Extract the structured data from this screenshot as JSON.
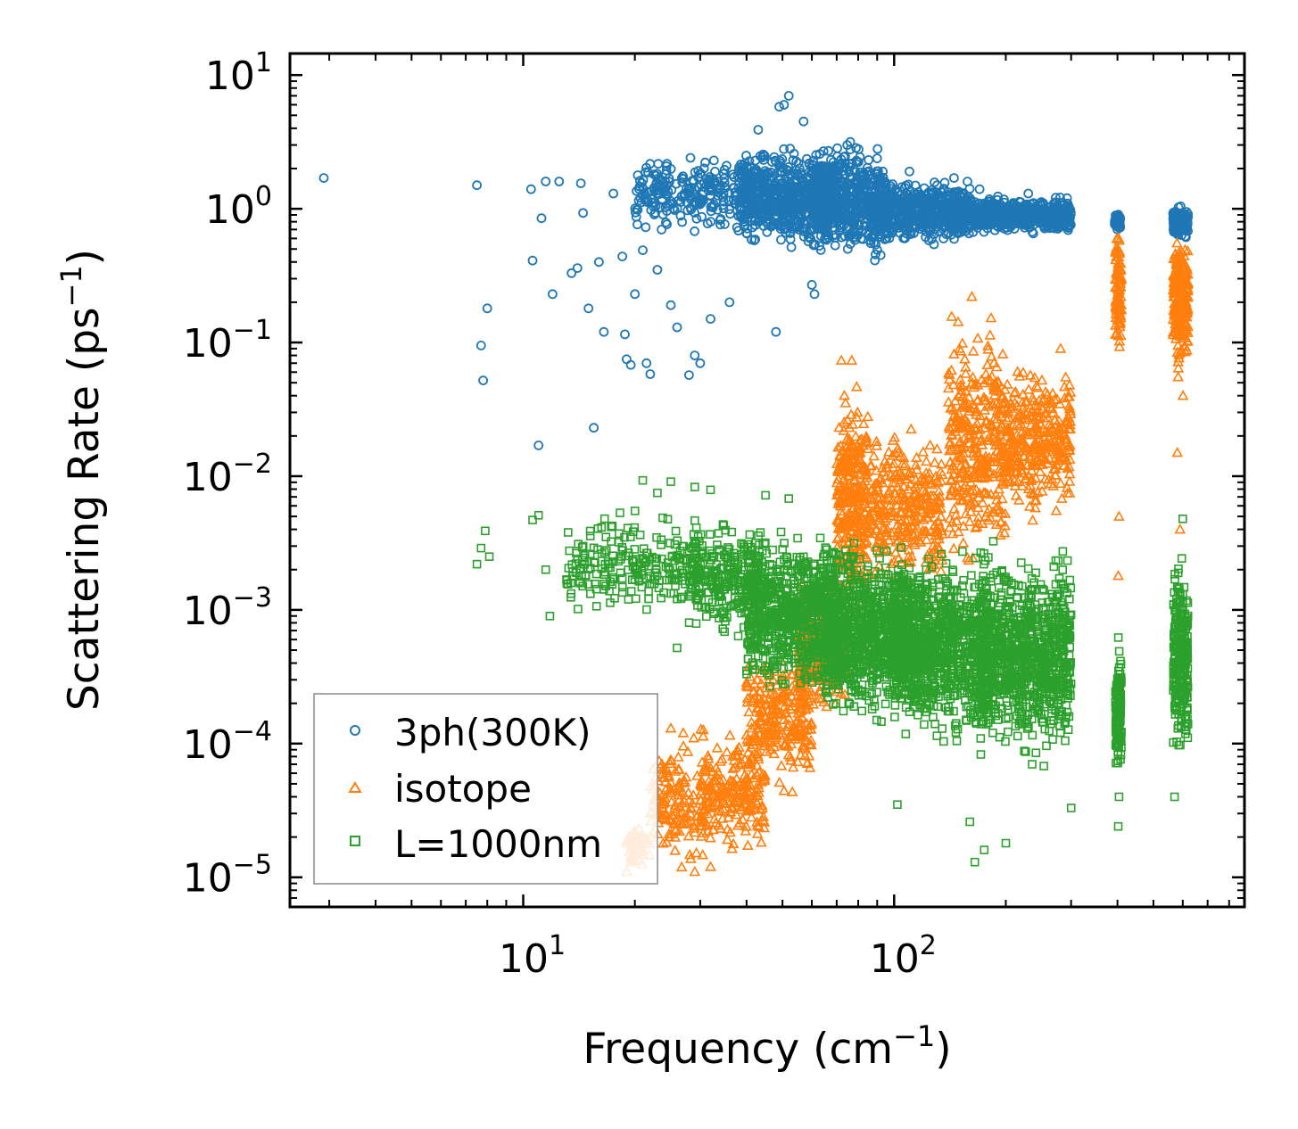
{
  "chart_data": {
    "type": "scatter",
    "title": "",
    "xlabel": {
      "base": "Frequency (cm",
      "exp": "−1",
      "close": ")"
    },
    "ylabel": {
      "base": "Scattering Rate (ps",
      "exp": "−1",
      "close": ")"
    },
    "xscale": "log",
    "yscale": "log",
    "xlim": [
      2.35,
      880
    ],
    "ylim": [
      6e-06,
      14.5
    ],
    "x_ticks": [
      {
        "value": 10,
        "base": "10",
        "exp": "1"
      },
      {
        "value": 100,
        "base": "10",
        "exp": "2"
      }
    ],
    "y_ticks": [
      {
        "value": 10,
        "base": "10",
        "exp": "1"
      },
      {
        "value": 1,
        "base": "10",
        "exp": "0"
      },
      {
        "value": 0.1,
        "base": "10",
        "exp": "−1"
      },
      {
        "value": 0.01,
        "base": "10",
        "exp": "−2"
      },
      {
        "value": 0.001,
        "base": "10",
        "exp": "−3"
      },
      {
        "value": 0.0001,
        "base": "10",
        "exp": "−4"
      },
      {
        "value": 1e-05,
        "base": "10",
        "exp": "−5"
      }
    ],
    "legend_position": "lower-left",
    "series": [
      {
        "name": "3ph(300K)",
        "marker": "circle",
        "color": "#1f77b4",
        "points": [
          [
            2.9,
            1.7
          ],
          [
            7.5,
            1.5
          ],
          [
            7.7,
            0.095
          ],
          [
            7.8,
            0.052
          ],
          [
            8.0,
            0.18
          ],
          [
            10.5,
            1.4
          ],
          [
            10.6,
            0.41
          ],
          [
            11.0,
            0.017
          ],
          [
            11.2,
            0.85
          ],
          [
            11.5,
            1.6
          ],
          [
            12.0,
            0.23
          ],
          [
            12.5,
            1.6
          ],
          [
            13.5,
            0.33
          ],
          [
            14.0,
            0.36
          ],
          [
            14.3,
            1.55
          ],
          [
            14.5,
            0.93
          ],
          [
            15.0,
            0.18
          ],
          [
            15.5,
            0.023
          ],
          [
            16.0,
            0.4
          ],
          [
            16.5,
            0.12
          ],
          [
            17.5,
            1.3
          ],
          [
            18.5,
            0.44
          ],
          [
            18.8,
            0.115
          ],
          [
            19.0,
            0.075
          ],
          [
            19.5,
            0.068
          ],
          [
            20.0,
            0.23
          ],
          [
            21.0,
            0.49
          ],
          [
            21.5,
            0.07
          ],
          [
            22.0,
            0.058
          ],
          [
            23.0,
            0.35
          ],
          [
            25.0,
            0.19
          ],
          [
            26.0,
            0.13
          ],
          [
            28.0,
            0.057
          ],
          [
            29.0,
            0.08
          ],
          [
            30.0,
            0.07
          ],
          [
            32.0,
            0.15
          ],
          [
            36.0,
            0.2
          ],
          [
            42.0,
            0.58
          ],
          [
            52.0,
            7.0
          ],
          [
            50.5,
            6.0
          ],
          [
            49.0,
            5.8
          ],
          [
            60.0,
            0.27
          ],
          [
            61.0,
            0.23
          ],
          [
            48.0,
            0.12
          ],
          [
            55.0,
            0.9
          ],
          [
            57.0,
            4.5
          ],
          [
            43.0,
            3.9
          ],
          [
            75.0,
            0.5
          ],
          [
            92.0,
            0.45
          ],
          [
            110.0,
            1.9
          ],
          [
            145.0,
            1.7
          ],
          [
            170.0,
            1.4
          ],
          [
            230.0,
            1.3
          ],
          [
            260.0,
            0.78
          ],
          [
            282.0,
            0.75
          ]
        ],
        "clouds": [
          {
            "x": [
              20,
              40
            ],
            "y": [
              0.6,
              2.8
            ],
            "n": 240
          },
          {
            "x": [
              38,
              70
            ],
            "y": [
              0.45,
              3.2
            ],
            "n": 650
          },
          {
            "x": [
              60,
              95
            ],
            "y": [
              0.35,
              3.8
            ],
            "n": 500
          },
          {
            "x": [
              90,
              160
            ],
            "y": [
              0.5,
              1.8
            ],
            "n": 520
          },
          {
            "x": [
              150,
              300
            ],
            "y": [
              0.62,
              1.3
            ],
            "n": 560
          },
          {
            "x": [
              393,
              408
            ],
            "y": [
              0.68,
              0.95
            ],
            "n": 70
          },
          {
            "x": [
              565,
              620
            ],
            "y": [
              0.55,
              1.1
            ],
            "n": 110
          }
        ]
      },
      {
        "name": "isotope",
        "marker": "triangle",
        "color": "#ff7f0e",
        "points": [
          [
            19.0,
            1.1e-05
          ],
          [
            19.5,
            1.3e-05
          ],
          [
            20.0,
            1.8e-05
          ],
          [
            20.5,
            2.3e-05
          ],
          [
            21.0,
            1.6e-05
          ],
          [
            25.0,
            0.00013
          ],
          [
            27.0,
            0.00012
          ],
          [
            29.0,
            1.1e-05
          ],
          [
            32.0,
            1.2e-05
          ],
          [
            281.0,
            0.09
          ],
          [
            405.0,
            0.093
          ],
          [
            404.0,
            0.005
          ],
          [
            402.0,
            0.0018
          ],
          [
            580.0,
            0.015
          ],
          [
            590.0,
            0.004
          ],
          [
            601.0,
            0.04
          ],
          [
            290.0,
            0.055
          ],
          [
            150.0,
            0.09
          ],
          [
            162.0,
            0.22
          ]
        ],
        "clouds": [
          {
            "x": [
              19,
              22
            ],
            "y": [
              1.1e-05,
              2.8e-05
            ],
            "n": 40
          },
          {
            "x": [
              22,
              32
            ],
            "y": [
              1e-05,
              0.00013
            ],
            "n": 160
          },
          {
            "x": [
              30,
              45
            ],
            "y": [
              1.3e-05,
              0.00015
            ],
            "n": 200
          },
          {
            "x": [
              40,
              60
            ],
            "y": [
              4e-05,
              0.0006
            ],
            "n": 260
          },
          {
            "x": [
              55,
              75
            ],
            "y": [
              0.00012,
              0.002
            ],
            "n": 260
          },
          {
            "x": [
              70,
              85
            ],
            "y": [
              0.0006,
              0.08
            ],
            "n": 320
          },
          {
            "x": [
              85,
              135
            ],
            "y": [
              0.0012,
              0.03
            ],
            "n": 320
          },
          {
            "x": [
              140,
              200
            ],
            "y": [
              0.0015,
              0.2
            ],
            "n": 360
          },
          {
            "x": [
              200,
              300
            ],
            "y": [
              0.004,
              0.08
            ],
            "n": 320
          },
          {
            "x": [
              395,
              410
            ],
            "y": [
              0.08,
              0.8
            ],
            "n": 90
          },
          {
            "x": [
              565,
              620
            ],
            "y": [
              0.05,
              0.9
            ],
            "n": 220
          }
        ]
      },
      {
        "name": "L=1000nm",
        "marker": "square",
        "color": "#2ca02c",
        "points": [
          [
            7.5,
            0.0022
          ],
          [
            7.7,
            0.0029
          ],
          [
            7.9,
            0.0039
          ],
          [
            8.1,
            0.0025
          ],
          [
            10.6,
            0.0047
          ],
          [
            11.0,
            0.0051
          ],
          [
            11.5,
            0.002
          ],
          [
            11.8,
            0.0009
          ],
          [
            20.0,
            0.0055
          ],
          [
            21.0,
            0.0093
          ],
          [
            23.0,
            0.0075
          ],
          [
            25.0,
            0.0091
          ],
          [
            29.0,
            0.0083
          ],
          [
            32.0,
            0.0079
          ],
          [
            45.0,
            0.0072
          ],
          [
            52.0,
            0.0068
          ],
          [
            26.0,
            0.00052
          ],
          [
            40.0,
            0.00035
          ],
          [
            102.0,
            3.5e-05
          ],
          [
            160.0,
            2.6e-05
          ],
          [
            165.0,
            1.3e-05
          ],
          [
            175.0,
            1.6e-05
          ],
          [
            200.0,
            1.8e-05
          ],
          [
            300.0,
            3.3e-05
          ],
          [
            402.0,
            2.4e-05
          ],
          [
            404.0,
            4e-05
          ],
          [
            570.0,
            4e-05
          ],
          [
            600.0,
            0.0048
          ]
        ],
        "clouds": [
          {
            "x": [
              13,
              30
            ],
            "y": [
              0.0008,
              0.006
            ],
            "n": 220
          },
          {
            "x": [
              28,
              45
            ],
            "y": [
              0.0005,
              0.006
            ],
            "n": 260
          },
          {
            "x": [
              40,
              70
            ],
            "y": [
              0.0002,
              0.0045
            ],
            "n": 700
          },
          {
            "x": [
              65,
              110
            ],
            "y": [
              0.00012,
              0.004
            ],
            "n": 850
          },
          {
            "x": [
              100,
              180
            ],
            "y": [
              8e-05,
              0.0035
            ],
            "n": 900
          },
          {
            "x": [
              170,
              300
            ],
            "y": [
              6e-05,
              0.0035
            ],
            "n": 900
          },
          {
            "x": [
              395,
              410
            ],
            "y": [
              5e-05,
              0.00065
            ],
            "n": 130
          },
          {
            "x": [
              565,
              620
            ],
            "y": [
              6e-05,
              0.0035
            ],
            "n": 260
          }
        ]
      }
    ]
  }
}
